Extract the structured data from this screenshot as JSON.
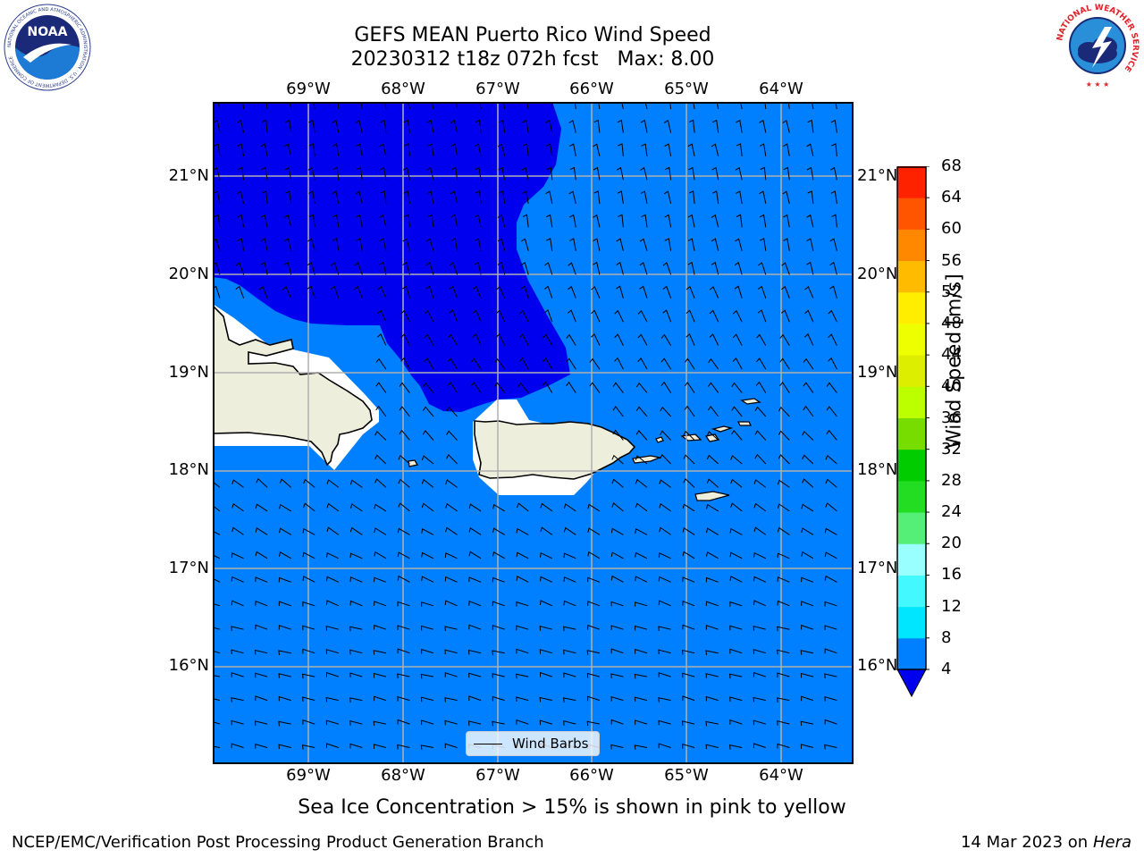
{
  "header": {
    "title_line1": "GEFS MEAN Puerto Rico Wind Speed",
    "title_line2": "20230312 t18z 072h fcst   Max: 8.00"
  },
  "logos": {
    "left_name": "NOAA",
    "left_ring_text": "NATIONAL OCEANIC AND ATMOSPHERIC ADMINISTRATION · U.S. DEPARTMENT OF COMMERCE",
    "right_ring_text": "NATIONAL WEATHER SERVICE"
  },
  "map": {
    "lon_labels": [
      "69°W",
      "68°W",
      "67°W",
      "66°W",
      "65°W",
      "64°W"
    ],
    "lat_labels": [
      "21°N",
      "20°N",
      "19°N",
      "18°N",
      "17°N",
      "16°N"
    ],
    "lon_range": [
      -70.0,
      -63.25
    ],
    "lat_range": [
      15.0,
      21.75
    ],
    "gridlines": true,
    "colors": {
      "speed_4_8": "#0080ff",
      "speed_below_4": "#0000ee",
      "land": "#eeeedd",
      "masked": "#ffffff",
      "gridline": "#b0b0b0"
    },
    "wind_barbs_shown": true,
    "legend_label": "Wind Barbs"
  },
  "colorbar": {
    "label": "Wind Speed [m/s]",
    "levels": [
      4,
      8,
      12,
      16,
      20,
      24,
      28,
      32,
      36,
      40,
      44,
      48,
      52,
      56,
      60,
      64,
      68
    ],
    "colors": [
      "#0080ff",
      "#00e6ff",
      "#44f8ff",
      "#99ffff",
      "#55ee77",
      "#22dd22",
      "#00cc00",
      "#77dd00",
      "#bbff00",
      "#ddee00",
      "#eeff00",
      "#ffee00",
      "#ffbb00",
      "#ff8800",
      "#ff5500",
      "#ff2200"
    ],
    "under_color": "#0000ee",
    "extend": "min"
  },
  "note": "Sea Ice Concentration > 15% is shown in pink to yellow",
  "footer": {
    "left": "NCEP/EMC/Verification Post Processing Product Generation Branch",
    "right_date": "14 Mar 2023 on",
    "right_machine": "Hera"
  }
}
